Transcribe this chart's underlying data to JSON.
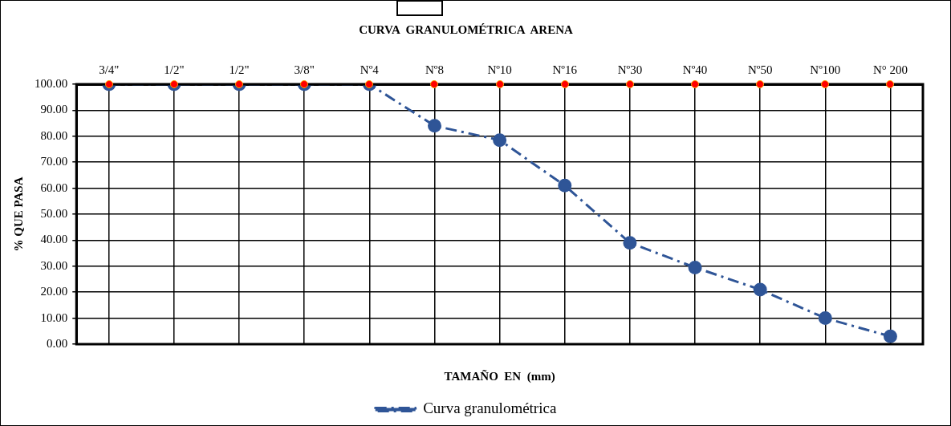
{
  "chart_data": {
    "type": "line",
    "title": "CURVA  GRANULOMÉTRICA  ARENA",
    "xlabel": "TAMAÑO  EN  (mm)",
    "ylabel": "% QUE PASA",
    "categories": [
      "3/4\"",
      "1/2\"",
      "1/2\"",
      "3/8\"",
      "Nº4",
      "Nº8",
      "Nº10",
      "Nº16",
      "Nº30",
      "Nº40",
      "Nº50",
      "Nº100",
      "N° 200"
    ],
    "series": [
      {
        "name": "Curva granulométrica",
        "color": "#2f5597",
        "values": [
          100,
          100,
          100,
          100,
          100,
          84,
          78.5,
          61,
          39,
          29.5,
          21,
          10,
          3
        ],
        "marker": "circle",
        "line_style": "dashed"
      }
    ],
    "ylim": [
      0,
      100
    ],
    "yticks": [
      {
        "value": 0,
        "label": "0.00"
      },
      {
        "value": 10,
        "label": "10.00"
      },
      {
        "value": 20,
        "label": "20.00"
      },
      {
        "value": 30,
        "label": "30.00"
      },
      {
        "value": 40,
        "label": "40.00"
      },
      {
        "value": 50,
        "label": "50.00"
      },
      {
        "value": 60,
        "label": "60.00"
      },
      {
        "value": 70,
        "label": "70.00"
      },
      {
        "value": 80,
        "label": "80.00"
      },
      {
        "value": 90,
        "label": "90.00"
      },
      {
        "value": 100,
        "label": "100.00"
      }
    ],
    "grid": true,
    "legend": "bottom"
  }
}
